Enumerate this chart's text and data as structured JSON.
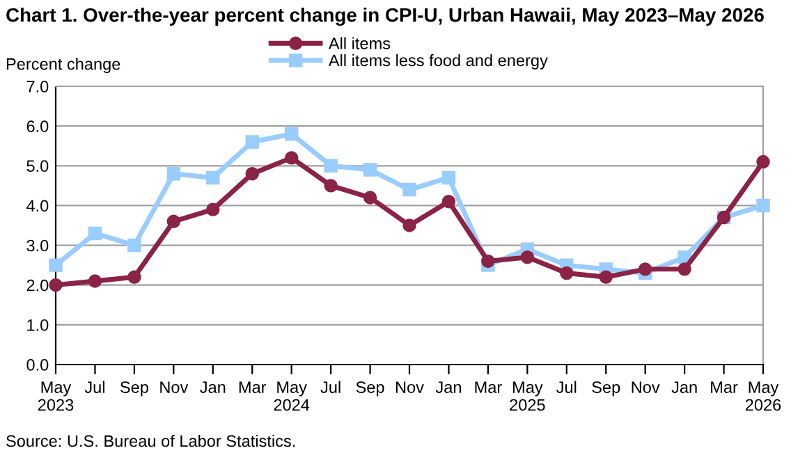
{
  "chart_data": {
    "type": "line",
    "title": "Chart 1. Over-the-year percent change in CPI-U, Urban Hawaii, May 2023–May 2026",
    "ylabel": "Percent change",
    "categories": [
      "May\n2023",
      "Jul",
      "Sep",
      "Nov",
      "Jan",
      "Mar",
      "May\n2024",
      "Jul",
      "Sep",
      "Nov",
      "Jan",
      "Mar",
      "May\n2025",
      "Jul",
      "Sep",
      "Nov",
      "Jan",
      "Mar",
      "May\n2026"
    ],
    "series": [
      {
        "name": "All items",
        "color": "#8b2346",
        "marker": "circle",
        "values": [
          2.0,
          2.1,
          2.2,
          3.6,
          3.9,
          4.8,
          5.2,
          4.5,
          4.2,
          3.5,
          4.1,
          2.6,
          2.7,
          2.3,
          2.2,
          2.4,
          2.4,
          3.7,
          5.1
        ]
      },
      {
        "name": "All items less food and energy",
        "color": "#99ccff",
        "marker": "square",
        "values": [
          2.5,
          3.3,
          3.0,
          4.8,
          4.7,
          5.6,
          5.8,
          5.0,
          4.9,
          4.4,
          4.7,
          2.5,
          2.9,
          2.5,
          2.4,
          2.3,
          2.7,
          3.7,
          4.0
        ]
      }
    ],
    "ylim": [
      0,
      7
    ],
    "yticks": [
      {
        "value": 0,
        "label": "0.0"
      },
      {
        "value": 1,
        "label": "1.0"
      },
      {
        "value": 2,
        "label": "2.0"
      },
      {
        "value": 3,
        "label": "3.0"
      },
      {
        "value": 4,
        "label": "4.0"
      },
      {
        "value": 5,
        "label": "5.0"
      },
      {
        "value": 6,
        "label": "6.0"
      },
      {
        "value": 7,
        "label": "7.0"
      }
    ],
    "grid": "y",
    "legend": "top",
    "line_style": "solid",
    "annotations": [
      "Source: U.S. Bureau of Labor Statistics."
    ]
  }
}
